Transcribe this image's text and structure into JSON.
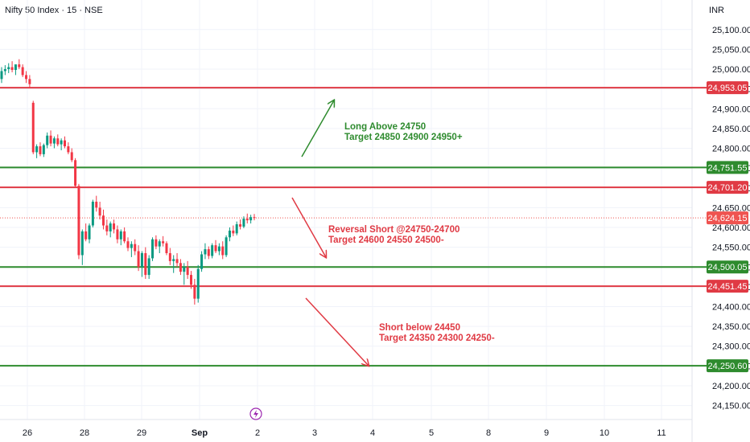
{
  "header": {
    "symbol_title": "Nifty 50 Index · 15 · NSE",
    "currency": "INR"
  },
  "colors": {
    "up": "#089981",
    "down": "#f23645",
    "resistance": "#e03a44",
    "support": "#2e8b2e",
    "last_price": "#ef5350",
    "grid": "#f0f3fa",
    "flash_icon": "#9c27b0"
  },
  "chart_data": {
    "type": "candlestick",
    "ylim": [
      24135,
      25130
    ],
    "y_ticks": [
      "25,100.00",
      "25,050.00",
      "25,000.00",
      "24,950.00",
      "24,900.00",
      "24,850.00",
      "24,800.00",
      "24,750.00",
      "24,700.00",
      "24,650.00",
      "24,600.00",
      "24,550.00",
      "24,500.00",
      "24,450.00",
      "24,400.00",
      "24,350.00",
      "24,300.00",
      "24,250.00",
      "24,200.00",
      "24,150.00"
    ],
    "x_ticks": [
      "26",
      "28",
      "29",
      "Sep",
      "2",
      "3",
      "4",
      "5",
      "8",
      "9",
      "10",
      "11"
    ],
    "horizontal_levels": [
      {
        "value": 24953.05,
        "label": "24,953.05",
        "kind": "resistance"
      },
      {
        "value": 24751.55,
        "label": "24,751.55",
        "kind": "support"
      },
      {
        "value": 24701.2,
        "label": "24,701.20",
        "kind": "resistance"
      },
      {
        "value": 24500.05,
        "label": "24,500.05",
        "kind": "support"
      },
      {
        "value": 24451.45,
        "label": "24,451.45",
        "kind": "resistance"
      },
      {
        "value": 24250.6,
        "label": "24,250.60",
        "kind": "support"
      }
    ],
    "last_price": {
      "value": 24624.15,
      "label": "24,624.15"
    },
    "candles": [
      [
        24975,
        25005,
        24965,
        24995
      ],
      [
        24995,
        25010,
        24985,
        25000
      ],
      [
        25000,
        25015,
        24990,
        25005
      ],
      [
        25005,
        25020,
        24992,
        24998
      ],
      [
        24998,
        25010,
        24985,
        25012
      ],
      [
        25012,
        25025,
        25000,
        25005
      ],
      [
        25005,
        25012,
        24980,
        24985
      ],
      [
        24985,
        24995,
        24965,
        24975
      ],
      [
        24975,
        24985,
        24952,
        24962
      ],
      [
        24915,
        24920,
        24785,
        24790
      ],
      [
        24790,
        24810,
        24775,
        24805
      ],
      [
        24805,
        24815,
        24780,
        24785
      ],
      [
        24785,
        24812,
        24778,
        24808
      ],
      [
        24808,
        24840,
        24800,
        24832
      ],
      [
        24832,
        24845,
        24805,
        24812
      ],
      [
        24812,
        24830,
        24800,
        24825
      ],
      [
        24825,
        24835,
        24805,
        24810
      ],
      [
        24810,
        24825,
        24795,
        24820
      ],
      [
        24820,
        24830,
        24800,
        24805
      ],
      [
        24805,
        24815,
        24785,
        24790
      ],
      [
        24790,
        24800,
        24765,
        24770
      ],
      [
        24770,
        24775,
        24700,
        24705
      ],
      [
        24705,
        24710,
        24520,
        24530
      ],
      [
        24530,
        24595,
        24505,
        24590
      ],
      [
        24590,
        24610,
        24565,
        24570
      ],
      [
        24570,
        24610,
        24560,
        24605
      ],
      [
        24605,
        24670,
        24600,
        24665
      ],
      [
        24665,
        24680,
        24640,
        24650
      ],
      [
        24650,
        24665,
        24620,
        24630
      ],
      [
        24630,
        24645,
        24595,
        24605
      ],
      [
        24605,
        24620,
        24580,
        24590
      ],
      [
        24590,
        24615,
        24575,
        24610
      ],
      [
        24610,
        24620,
        24585,
        24595
      ],
      [
        24595,
        24605,
        24560,
        24570
      ],
      [
        24570,
        24595,
        24555,
        24590
      ],
      [
        24590,
        24600,
        24560,
        24565
      ],
      [
        24565,
        24575,
        24540,
        24548
      ],
      [
        24548,
        24565,
        24525,
        24558
      ],
      [
        24558,
        24570,
        24530,
        24540
      ],
      [
        24540,
        24555,
        24490,
        24500
      ],
      [
        24500,
        24540,
        24475,
        24535
      ],
      [
        24535,
        24550,
        24470,
        24480
      ],
      [
        24480,
        24530,
        24470,
        24522
      ],
      [
        24522,
        24575,
        24515,
        24570
      ],
      [
        24570,
        24580,
        24545,
        24552
      ],
      [
        24552,
        24570,
        24535,
        24565
      ],
      [
        24565,
        24578,
        24552,
        24560
      ],
      [
        24560,
        24565,
        24530,
        24535
      ],
      [
        24535,
        24548,
        24505,
        24515
      ],
      [
        24515,
        24530,
        24485,
        24520
      ],
      [
        24520,
        24535,
        24500,
        24510
      ],
      [
        24510,
        24520,
        24480,
        24488
      ],
      [
        24488,
        24510,
        24455,
        24500
      ],
      [
        24500,
        24515,
        24470,
        24480
      ],
      [
        24480,
        24490,
        24445,
        24455
      ],
      [
        24455,
        24470,
        24405,
        24420
      ],
      [
        24420,
        24505,
        24410,
        24495
      ],
      [
        24495,
        24540,
        24488,
        24532
      ],
      [
        24532,
        24560,
        24520,
        24545
      ],
      [
        24545,
        24552,
        24520,
        24528
      ],
      [
        24528,
        24560,
        24522,
        24555
      ],
      [
        24555,
        24568,
        24535,
        24540
      ],
      [
        24540,
        24560,
        24530,
        24552
      ],
      [
        24552,
        24565,
        24520,
        24530
      ],
      [
        24530,
        24580,
        24525,
        24575
      ],
      [
        24575,
        24600,
        24565,
        24592
      ],
      [
        24592,
        24605,
        24578,
        24585
      ],
      [
        24585,
        24615,
        24580,
        24608
      ],
      [
        24608,
        24620,
        24595,
        24602
      ],
      [
        24602,
        24628,
        24598,
        24622
      ],
      [
        24622,
        24635,
        24610,
        24618
      ],
      [
        24618,
        24632,
        24610,
        24626
      ],
      [
        24626,
        24634,
        24618,
        24624
      ]
    ]
  },
  "annotations": {
    "long": {
      "line1": "Long Above 24750",
      "line2": "Target 24850 24900 24950+"
    },
    "reversal": {
      "line1": "Reversal Short @24750-24700",
      "line2": "Target 24600 24550 24500-"
    },
    "short": {
      "line1": "Short below 24450",
      "line2": "Target 24350 24300 24250-"
    }
  }
}
